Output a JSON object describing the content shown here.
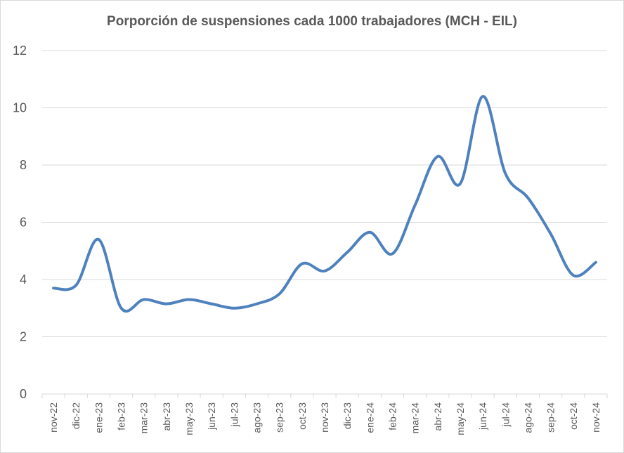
{
  "chart_data": {
    "type": "line",
    "title": "Porporción de suspensiones cada 1000 trabajadores (MCH - EIL)",
    "xlabel": "",
    "ylabel": "",
    "categories": [
      "nov-22",
      "dic-22",
      "ene-23",
      "feb-23",
      "mar-23",
      "abr-23",
      "may-23",
      "jun-23",
      "jul-23",
      "ago-23",
      "sep-23",
      "oct-23",
      "nov-23",
      "dic-23",
      "ene-24",
      "feb-24",
      "mar-24",
      "abr-24",
      "may-24",
      "jun-24",
      "jul-24",
      "ago-24",
      "sep-24",
      "oct-24",
      "nov-24"
    ],
    "series": [
      {
        "values": [
          3.7,
          3.8,
          5.4,
          3.0,
          3.3,
          3.15,
          3.3,
          3.15,
          3.0,
          3.15,
          3.5,
          4.55,
          4.3,
          4.95,
          5.65,
          4.9,
          6.6,
          8.3,
          7.35,
          10.4,
          7.7,
          6.85,
          5.6,
          4.15,
          4.6
        ],
        "color": "#4e81bd"
      }
    ],
    "ylim": [
      0,
      12
    ],
    "yticks": [
      0,
      2,
      4,
      6,
      8,
      10,
      12
    ],
    "grid": true,
    "legend": "none",
    "colors": {
      "line": "#4e81bd",
      "grid": "#d9d9d9",
      "text": "#595959"
    }
  }
}
